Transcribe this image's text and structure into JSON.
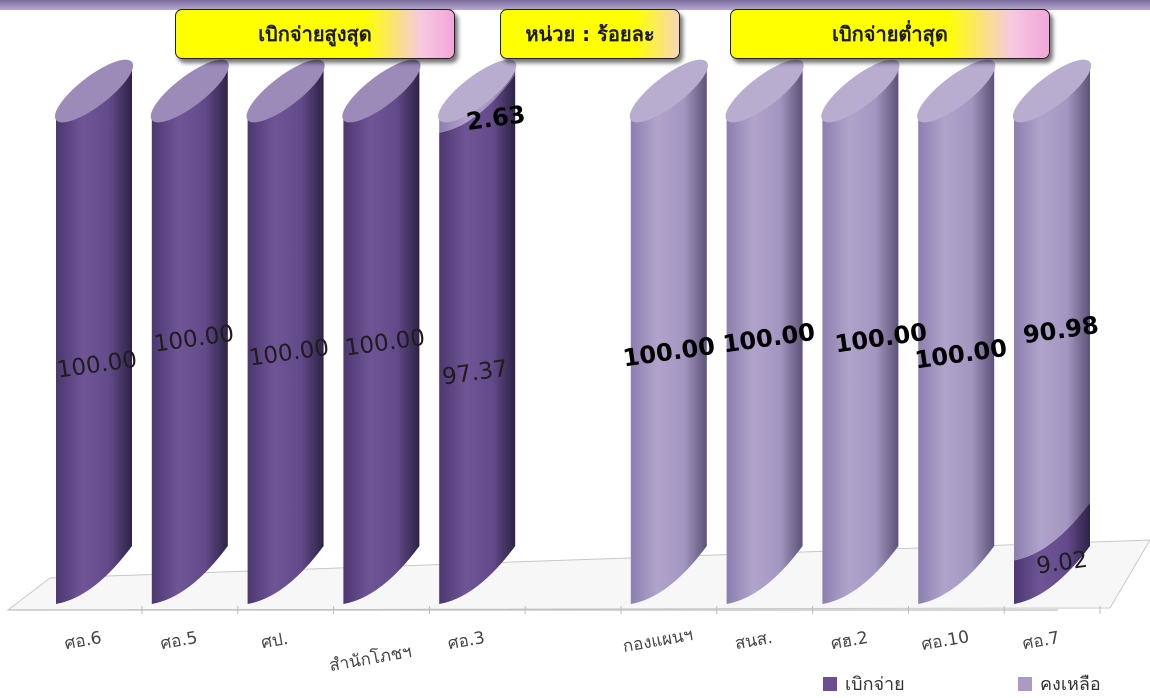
{
  "banners": {
    "high": "เบิกจ่ายสูงสุด",
    "unit": "หน่วย : ร้อยละ",
    "low": "เบิกจ่ายต่ำสุด"
  },
  "legend": {
    "spent": "เบิกจ่าย",
    "remaining": "คงเหลือ"
  },
  "colors": {
    "spent": "#6a5090",
    "remaining": "#a99bc4",
    "banner": "#ffff00"
  },
  "chart_data": {
    "type": "bar",
    "stacked": true,
    "three_d": "cylinder",
    "categories": [
      "ศอ.6",
      "ศอ.5",
      "ศป.",
      "สำนักโภชฯ",
      "ศอ.3",
      "",
      "กองแผนฯ",
      "สนส.",
      "ศฮ.2",
      "ศอ.10",
      "ศอ.7"
    ],
    "ylim": [
      0,
      100
    ],
    "series": [
      {
        "name": "เบิกจ่าย",
        "values": [
          100.0,
          100.0,
          100.0,
          100.0,
          97.37,
          null,
          0,
          0,
          0,
          0,
          9.02
        ]
      },
      {
        "name": "คงเหลือ",
        "values": [
          0,
          0,
          0,
          0,
          2.63,
          null,
          100.0,
          100.0,
          100.0,
          100.0,
          90.98
        ]
      }
    ],
    "data_labels": [
      [
        "100.00",
        ""
      ],
      [
        "100.00",
        ""
      ],
      [
        "100.00",
        ""
      ],
      [
        "100.00",
        ""
      ],
      [
        "97.37",
        "2.63"
      ],
      [
        "",
        ""
      ],
      [
        "",
        "100.00"
      ],
      [
        "",
        "100.00"
      ],
      [
        "",
        "100.00"
      ],
      [
        "",
        "100.00"
      ],
      [
        "9.02",
        "90.98"
      ]
    ],
    "legend_position": "bottom-right",
    "grid": false
  }
}
